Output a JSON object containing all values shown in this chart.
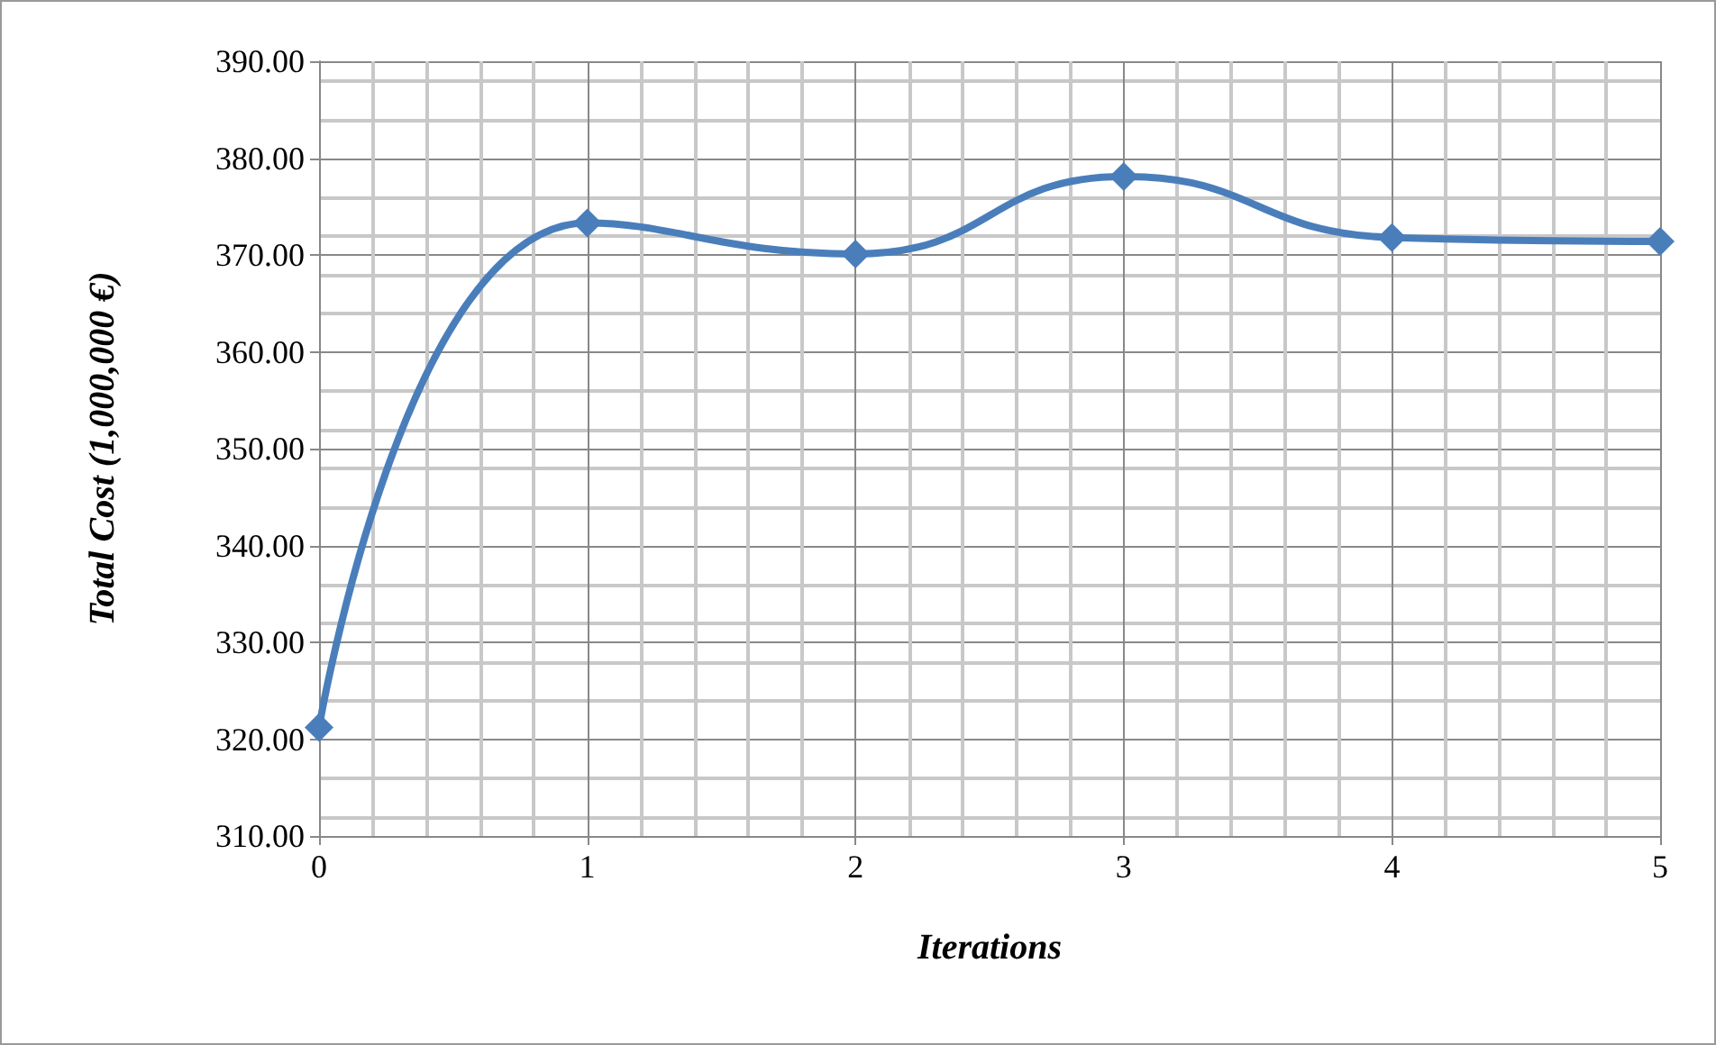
{
  "chart_data": {
    "type": "line",
    "xlabel": "Iterations",
    "ylabel": "Total Cost (1,000,000 €)",
    "x": [
      0,
      1,
      2,
      3,
      4,
      5
    ],
    "series": [
      {
        "color": "#4a7ebb",
        "values": [
          321.2,
          373.3,
          370.1,
          378.1,
          371.8,
          371.4
        ]
      }
    ],
    "xlim": [
      0,
      5
    ],
    "xticks": [
      0,
      1,
      2,
      3,
      4,
      5
    ],
    "ylim": [
      310,
      390
    ],
    "yticks": [
      {
        "value": 310,
        "label": "310.00"
      },
      {
        "value": 320,
        "label": "320.00"
      },
      {
        "value": 330,
        "label": "330.00"
      },
      {
        "value": 340,
        "label": "340.00"
      },
      {
        "value": 350,
        "label": "350.00"
      },
      {
        "value": 360,
        "label": "360.00"
      },
      {
        "value": 370,
        "label": "370.00"
      },
      {
        "value": 380,
        "label": "380.00"
      },
      {
        "value": 390,
        "label": "390.00"
      }
    ],
    "grid": true,
    "marker": "diamond",
    "line_style": "solid"
  }
}
